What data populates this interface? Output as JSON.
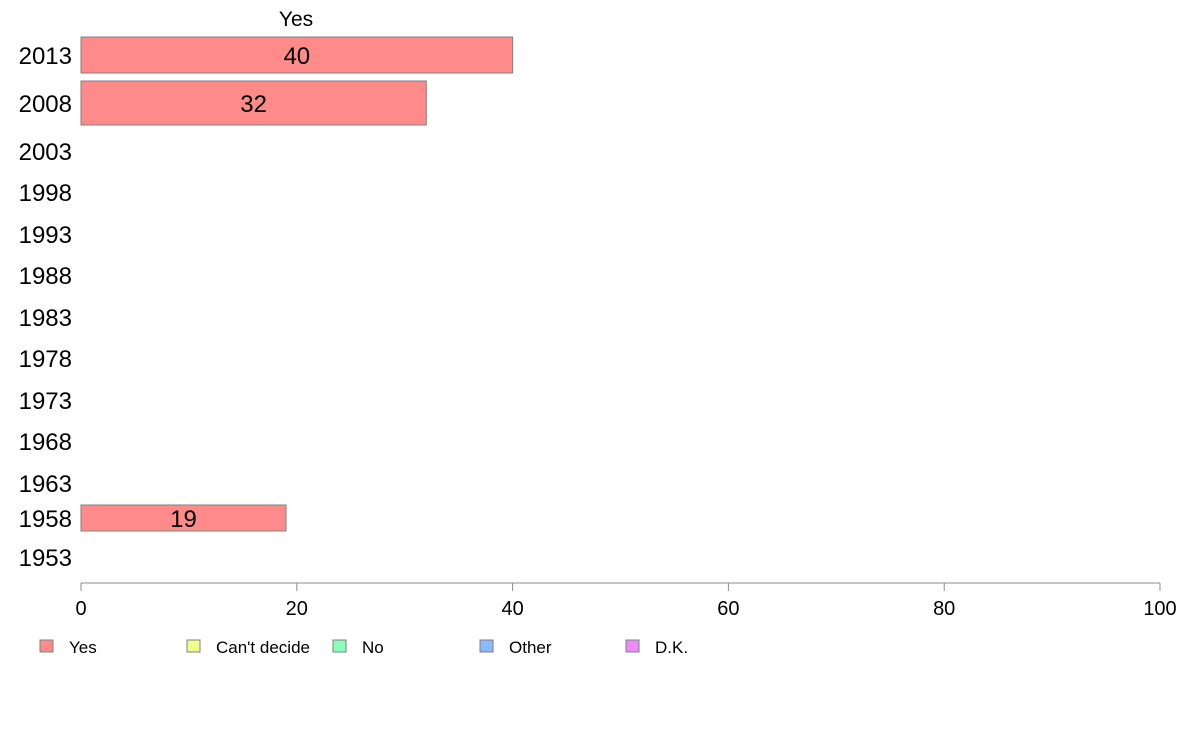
{
  "chart_data": {
    "type": "bar",
    "orientation": "horizontal",
    "column_title": "Yes",
    "categories": [
      "2013",
      "2008",
      "2003",
      "1998",
      "1993",
      "1988",
      "1983",
      "1978",
      "1973",
      "1968",
      "1963",
      "1958",
      "1953"
    ],
    "series": [
      {
        "name": "Yes",
        "color": "#ff8a8a",
        "values": [
          40,
          32,
          null,
          null,
          null,
          null,
          null,
          null,
          null,
          null,
          null,
          19,
          null
        ]
      }
    ],
    "xlim": [
      0,
      100
    ],
    "xticks": [
      0,
      20,
      40,
      60,
      80,
      100
    ],
    "grid": false,
    "legend_position": "bottom",
    "legend": [
      {
        "label": "Yes",
        "color": "#ff8a8a"
      },
      {
        "label": "Can't decide",
        "color": "#eeff8a"
      },
      {
        "label": "No",
        "color": "#8affb9"
      },
      {
        "label": "Other",
        "color": "#8ab9ff"
      },
      {
        "label": "D.K.",
        "color": "#ee8aff"
      }
    ]
  }
}
